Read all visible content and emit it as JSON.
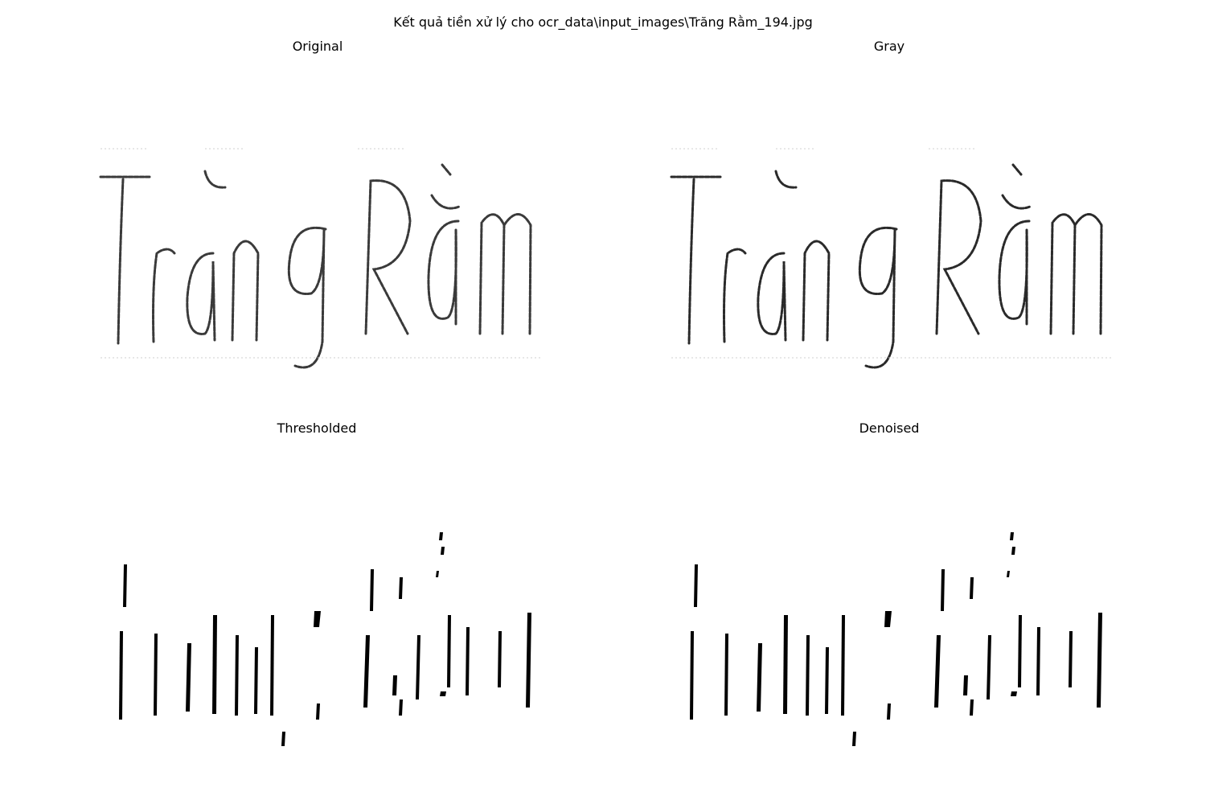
{
  "figure": {
    "suptitle": "Kết quả tiền xử lý cho ocr_data\\input_images\\Trăng Rằm_194.jpg"
  },
  "panels": [
    {
      "title": "Original",
      "image_text": "Trăng Rằm",
      "style": "soft"
    },
    {
      "title": "Gray",
      "image_text": "Trăng Rằm",
      "style": "soft"
    },
    {
      "title": "Thresholded",
      "image_text": "Trăng Rằm",
      "style": "binary"
    },
    {
      "title": "Denoised",
      "image_text": "Trăng Rằm",
      "style": "binary"
    }
  ],
  "colors": {
    "ink": "#000000",
    "soft_ink": "#333333",
    "background": "#ffffff"
  }
}
